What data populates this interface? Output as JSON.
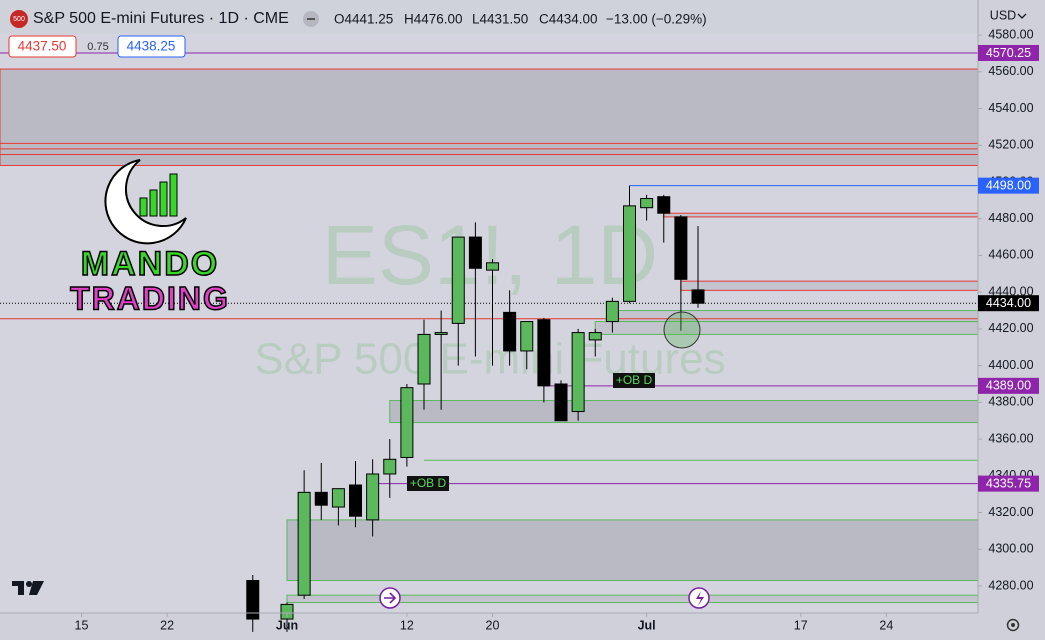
{
  "header": {
    "symbol_icon": "500",
    "title": "S&P 500 E-mini Futures · 1D · CME",
    "open": "O4441.25",
    "high": "H4476.00",
    "low": "L4431.50",
    "close": "C4434.00",
    "change": "−13.00 (−0.29%)",
    "currency": "USD"
  },
  "quote": {
    "bid": "4437.50",
    "spread": "0.75",
    "ask": "4438.25"
  },
  "watermark": {
    "line1": "ES1!, 1D",
    "line2": "S&P 500 E-mini Futures"
  },
  "logo": {
    "line1": "MANDO",
    "line2": "TRADING"
  },
  "annotations": [
    "+OB D",
    "+OB D"
  ],
  "chart_data": {
    "type": "candlestick",
    "up_color": "#5cb85c",
    "down_color": "#000000",
    "x": [
      0,
      2,
      3,
      4,
      5,
      6,
      7,
      8,
      9,
      10,
      11,
      12,
      13,
      14,
      15,
      16,
      17,
      18,
      19,
      20,
      21,
      22,
      23,
      24,
      25,
      26
    ],
    "open": [
      4283,
      4262,
      4275,
      4331,
      4323,
      4335,
      4316,
      4341,
      4350,
      4390,
      4417,
      4423,
      4470,
      4452,
      4429,
      4408,
      4425,
      4390,
      4375,
      4414,
      4424,
      4435,
      4486,
      4492,
      4481,
      4441.25
    ],
    "high": [
      4286,
      4271,
      4343,
      4347,
      4333,
      4348,
      4349,
      4360,
      4390,
      4425,
      4430,
      4470,
      4478,
      4458,
      4441,
      4424,
      4426,
      4392,
      4420,
      4420,
      4437,
      4498,
      4493,
      4493,
      4482,
      4476
    ],
    "low": [
      4255,
      4255,
      4273,
      4316,
      4313,
      4312,
      4307,
      4328,
      4345,
      4376,
      4376,
      4400,
      4405,
      4400,
      4400,
      4398,
      4380,
      4370,
      4370,
      4405,
      4418,
      4434,
      4479,
      4467,
      4419,
      4431.5
    ],
    "close": [
      4262,
      4270,
      4331,
      4324,
      4333,
      4318,
      4341,
      4349,
      4388,
      4417,
      4418,
      4470,
      4453,
      4456,
      4408,
      4424,
      4389,
      4370,
      4418,
      4418,
      4435,
      4487,
      4491,
      4483,
      4447,
      4434
    ],
    "xlim": [
      -14.76,
      42.35
    ],
    "xticks": [
      {
        "value": -10,
        "label": "15"
      },
      {
        "value": -5,
        "label": "22"
      },
      {
        "value": 2,
        "label": "Jun"
      },
      {
        "value": 9,
        "label": "12"
      },
      {
        "value": 14,
        "label": "20"
      },
      {
        "value": 23,
        "label": "Jul"
      },
      {
        "value": 32,
        "label": "17"
      },
      {
        "value": 37,
        "label": "24"
      }
    ],
    "ylim": [
      4265.3,
      4599.1
    ],
    "yticks": [
      {
        "value": 4580,
        "label": "4580.00"
      },
      {
        "value": 4560,
        "label": "4560.00"
      },
      {
        "value": 4540,
        "label": "4540.00"
      },
      {
        "value": 4520,
        "label": "4520.00"
      },
      {
        "value": 4500,
        "label": "4500.00"
      },
      {
        "value": 4480,
        "label": "4480.00"
      },
      {
        "value": 4460,
        "label": "4460.00"
      },
      {
        "value": 4440,
        "label": "4440.00"
      },
      {
        "value": 4420,
        "label": "4420.00"
      },
      {
        "value": 4400,
        "label": "4400.00"
      },
      {
        "value": 4380,
        "label": "4380.00"
      },
      {
        "value": 4360,
        "label": "4360.00"
      },
      {
        "value": 4340,
        "label": "4340.00"
      },
      {
        "value": 4320,
        "label": "4320.00"
      },
      {
        "value": 4300,
        "label": "4300.00"
      },
      {
        "value": 4280,
        "label": "4280.00"
      }
    ],
    "zones": [
      {
        "x0": -14.76,
        "range": [
          4509,
          4561.5
        ],
        "color": "#b9bac4",
        "border": "#e53935"
      },
      {
        "x0": 21,
        "range": [
          4424,
          4430
        ],
        "color": "#c3c4ce",
        "border": "#5cb85c"
      },
      {
        "x0": 20,
        "range": [
          4417,
          4424
        ],
        "color": "#c3c4ce",
        "border": "#5cb85c"
      },
      {
        "x0": 8,
        "range": [
          4369,
          4381
        ],
        "color": "#b9bac4",
        "border": "#5cb85c"
      },
      {
        "x0": 2,
        "range": [
          4283,
          4316
        ],
        "color": "#b9bac4",
        "border": "#5cb85c"
      },
      {
        "x0": 2,
        "range": [
          4271,
          4275
        ],
        "color": "#c3c4ce",
        "border": "#5cb85c"
      },
      {
        "x0": 24,
        "range": [
          4481,
          4483
        ],
        "color": "#c3c4ce",
        "border": "#e53935"
      },
      {
        "x0": 25,
        "range": [
          4441,
          4446
        ],
        "color": "#c3c4ce",
        "border": "#e53935"
      }
    ],
    "levels": [
      {
        "x0": -14.76,
        "value": 4521,
        "color": "#e53935"
      },
      {
        "x0": -14.76,
        "value": 4518,
        "color": "#e53935"
      },
      {
        "x0": -14.76,
        "value": 4515,
        "color": "#e53935"
      },
      {
        "x0": -14.76,
        "value": 4425.5,
        "color": "#e53935"
      },
      {
        "x0": 10,
        "value": 4348.5,
        "color": "#5cb85c"
      }
    ],
    "price_lines": [
      {
        "x0": -14.76,
        "value": 4570.25,
        "color": "#8e24aa"
      },
      {
        "x0": 22,
        "value": 4498,
        "label": "4498.00",
        "color": "#2962ff"
      },
      {
        "x0": -14.76,
        "value": 4434,
        "label": "4434.00",
        "color": "#000000",
        "dotted": true
      },
      {
        "x0": 17,
        "value": 4389,
        "label": "4389.00",
        "color": "#8e24aa"
      },
      {
        "x0": 7,
        "value": 4335.75,
        "color": "#8e24aa"
      }
    ]
  }
}
